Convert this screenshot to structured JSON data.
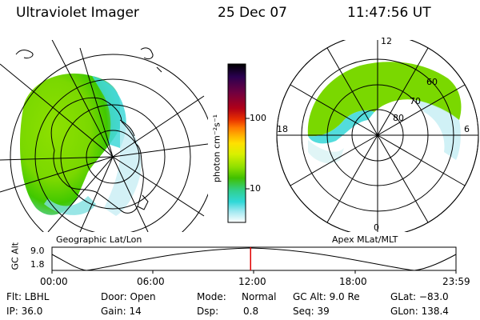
{
  "header": {
    "instrument": "Ultraviolet Imager",
    "date": "25 Dec 07",
    "time": "11:47:56 UT"
  },
  "left_panel": {
    "label": "Geographic Lat/Lon"
  },
  "right_panel": {
    "label": "Apex MLat/MLT",
    "mlt_labels": [
      "12",
      "18",
      "6",
      "0"
    ],
    "mlat_labels": [
      "60",
      "70",
      "80"
    ]
  },
  "colorbar": {
    "unit_label": "photon cm⁻²s⁻¹",
    "ticks": [
      "100",
      "10"
    ],
    "colors": [
      "#000000",
      "#2a0050",
      "#700040",
      "#b00018",
      "#e83000",
      "#ff7800",
      "#ffb000",
      "#ffe000",
      "#d8f000",
      "#90e000",
      "#40c000",
      "#30d090",
      "#30d8d8",
      "#a0e8f0",
      "#ffffff"
    ]
  },
  "timeline": {
    "ylabel": "GC Alt",
    "ymax_label": "9.0",
    "ymin_label": "1.8",
    "time_ticks": [
      "00:00",
      "06:00",
      "12:00",
      "18:00",
      "23:59"
    ],
    "current_time_fraction": 0.4916
  },
  "info": {
    "row1": {
      "flt": "Flt: LBHL",
      "door": "Door: Open",
      "mode_label": "Mode:",
      "mode_value": "Normal",
      "gcalt": "GC Alt: 9.0 Re",
      "glat": "GLat: −83.0"
    },
    "row2": {
      "ip": "IP: 36.0",
      "gain": "Gain: 14",
      "dsp_label": "Dsp:",
      "dsp_value": "0.8",
      "seq": "Seq: 39",
      "glon": "GLon: 138.4"
    }
  }
}
